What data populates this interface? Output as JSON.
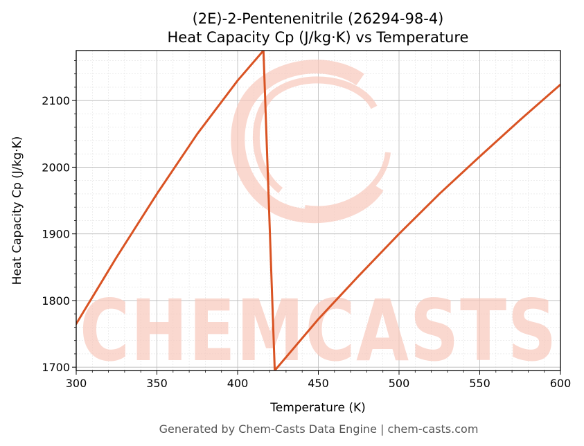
{
  "chart_data": {
    "type": "line",
    "title_line1": "(2E)-2-Pentenenitrile (26294-98-4)",
    "title_line2": "Heat Capacity Cp (J/kg·K) vs Temperature",
    "xlabel": "Temperature (K)",
    "ylabel": "Heat Capacity Cp (J/kg·K)",
    "xlim": [
      300,
      600
    ],
    "ylim": [
      1695,
      2175
    ],
    "xticks": [
      300,
      350,
      400,
      450,
      500,
      550,
      600
    ],
    "yticks": [
      1700,
      1800,
      1900,
      2000,
      2100
    ],
    "grid": true,
    "series": [
      {
        "color": "#d95323",
        "x": [
          300,
          325,
          350,
          375,
          400,
          416,
          423,
          450,
          475,
          500,
          525,
          550,
          575,
          600
        ],
        "y": [
          1765,
          1865,
          1960,
          2050,
          2130,
          2175,
          1695,
          1772,
          1837,
          1900,
          1960,
          2016,
          2071,
          2124
        ]
      }
    ]
  },
  "watermark": {
    "text": "CHEMCASTS",
    "color": "#f8c8bc"
  },
  "footer": "Generated by Chem-Casts Data Engine | chem-casts.com"
}
